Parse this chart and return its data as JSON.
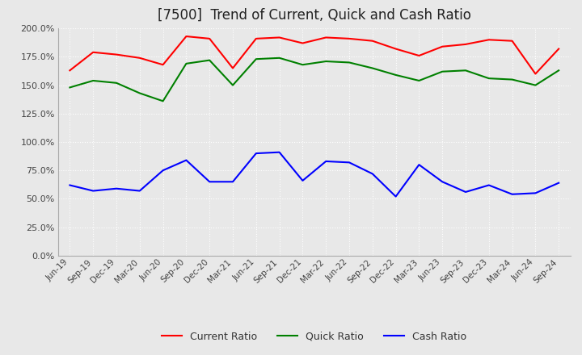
{
  "title": "[7500]  Trend of Current, Quick and Cash Ratio",
  "x_labels": [
    "Jun-19",
    "Sep-19",
    "Dec-19",
    "Mar-20",
    "Jun-20",
    "Sep-20",
    "Dec-20",
    "Mar-21",
    "Jun-21",
    "Sep-21",
    "Dec-21",
    "Mar-22",
    "Jun-22",
    "Sep-22",
    "Dec-22",
    "Mar-23",
    "Jun-23",
    "Sep-23",
    "Dec-23",
    "Mar-24",
    "Jun-24",
    "Sep-24"
  ],
  "current_ratio": [
    163,
    179,
    177,
    174,
    168,
    193,
    191,
    165,
    191,
    192,
    187,
    192,
    191,
    189,
    182,
    176,
    184,
    186,
    190,
    189,
    160,
    182
  ],
  "quick_ratio": [
    148,
    154,
    152,
    143,
    136,
    169,
    172,
    150,
    173,
    174,
    168,
    171,
    170,
    165,
    159,
    154,
    162,
    163,
    156,
    155,
    150,
    163
  ],
  "cash_ratio": [
    62,
    57,
    59,
    57,
    75,
    84,
    65,
    65,
    90,
    91,
    66,
    83,
    82,
    72,
    52,
    80,
    65,
    56,
    62,
    54,
    55,
    64
  ],
  "current_color": "#ff0000",
  "quick_color": "#008000",
  "cash_color": "#0000ff",
  "ylim": [
    0,
    200
  ],
  "yticks": [
    0,
    25,
    50,
    75,
    100,
    125,
    150,
    175,
    200
  ],
  "background_color": "#e8e8e8",
  "plot_bg_color": "#e8e8e8",
  "grid_color": "#ffffff"
}
